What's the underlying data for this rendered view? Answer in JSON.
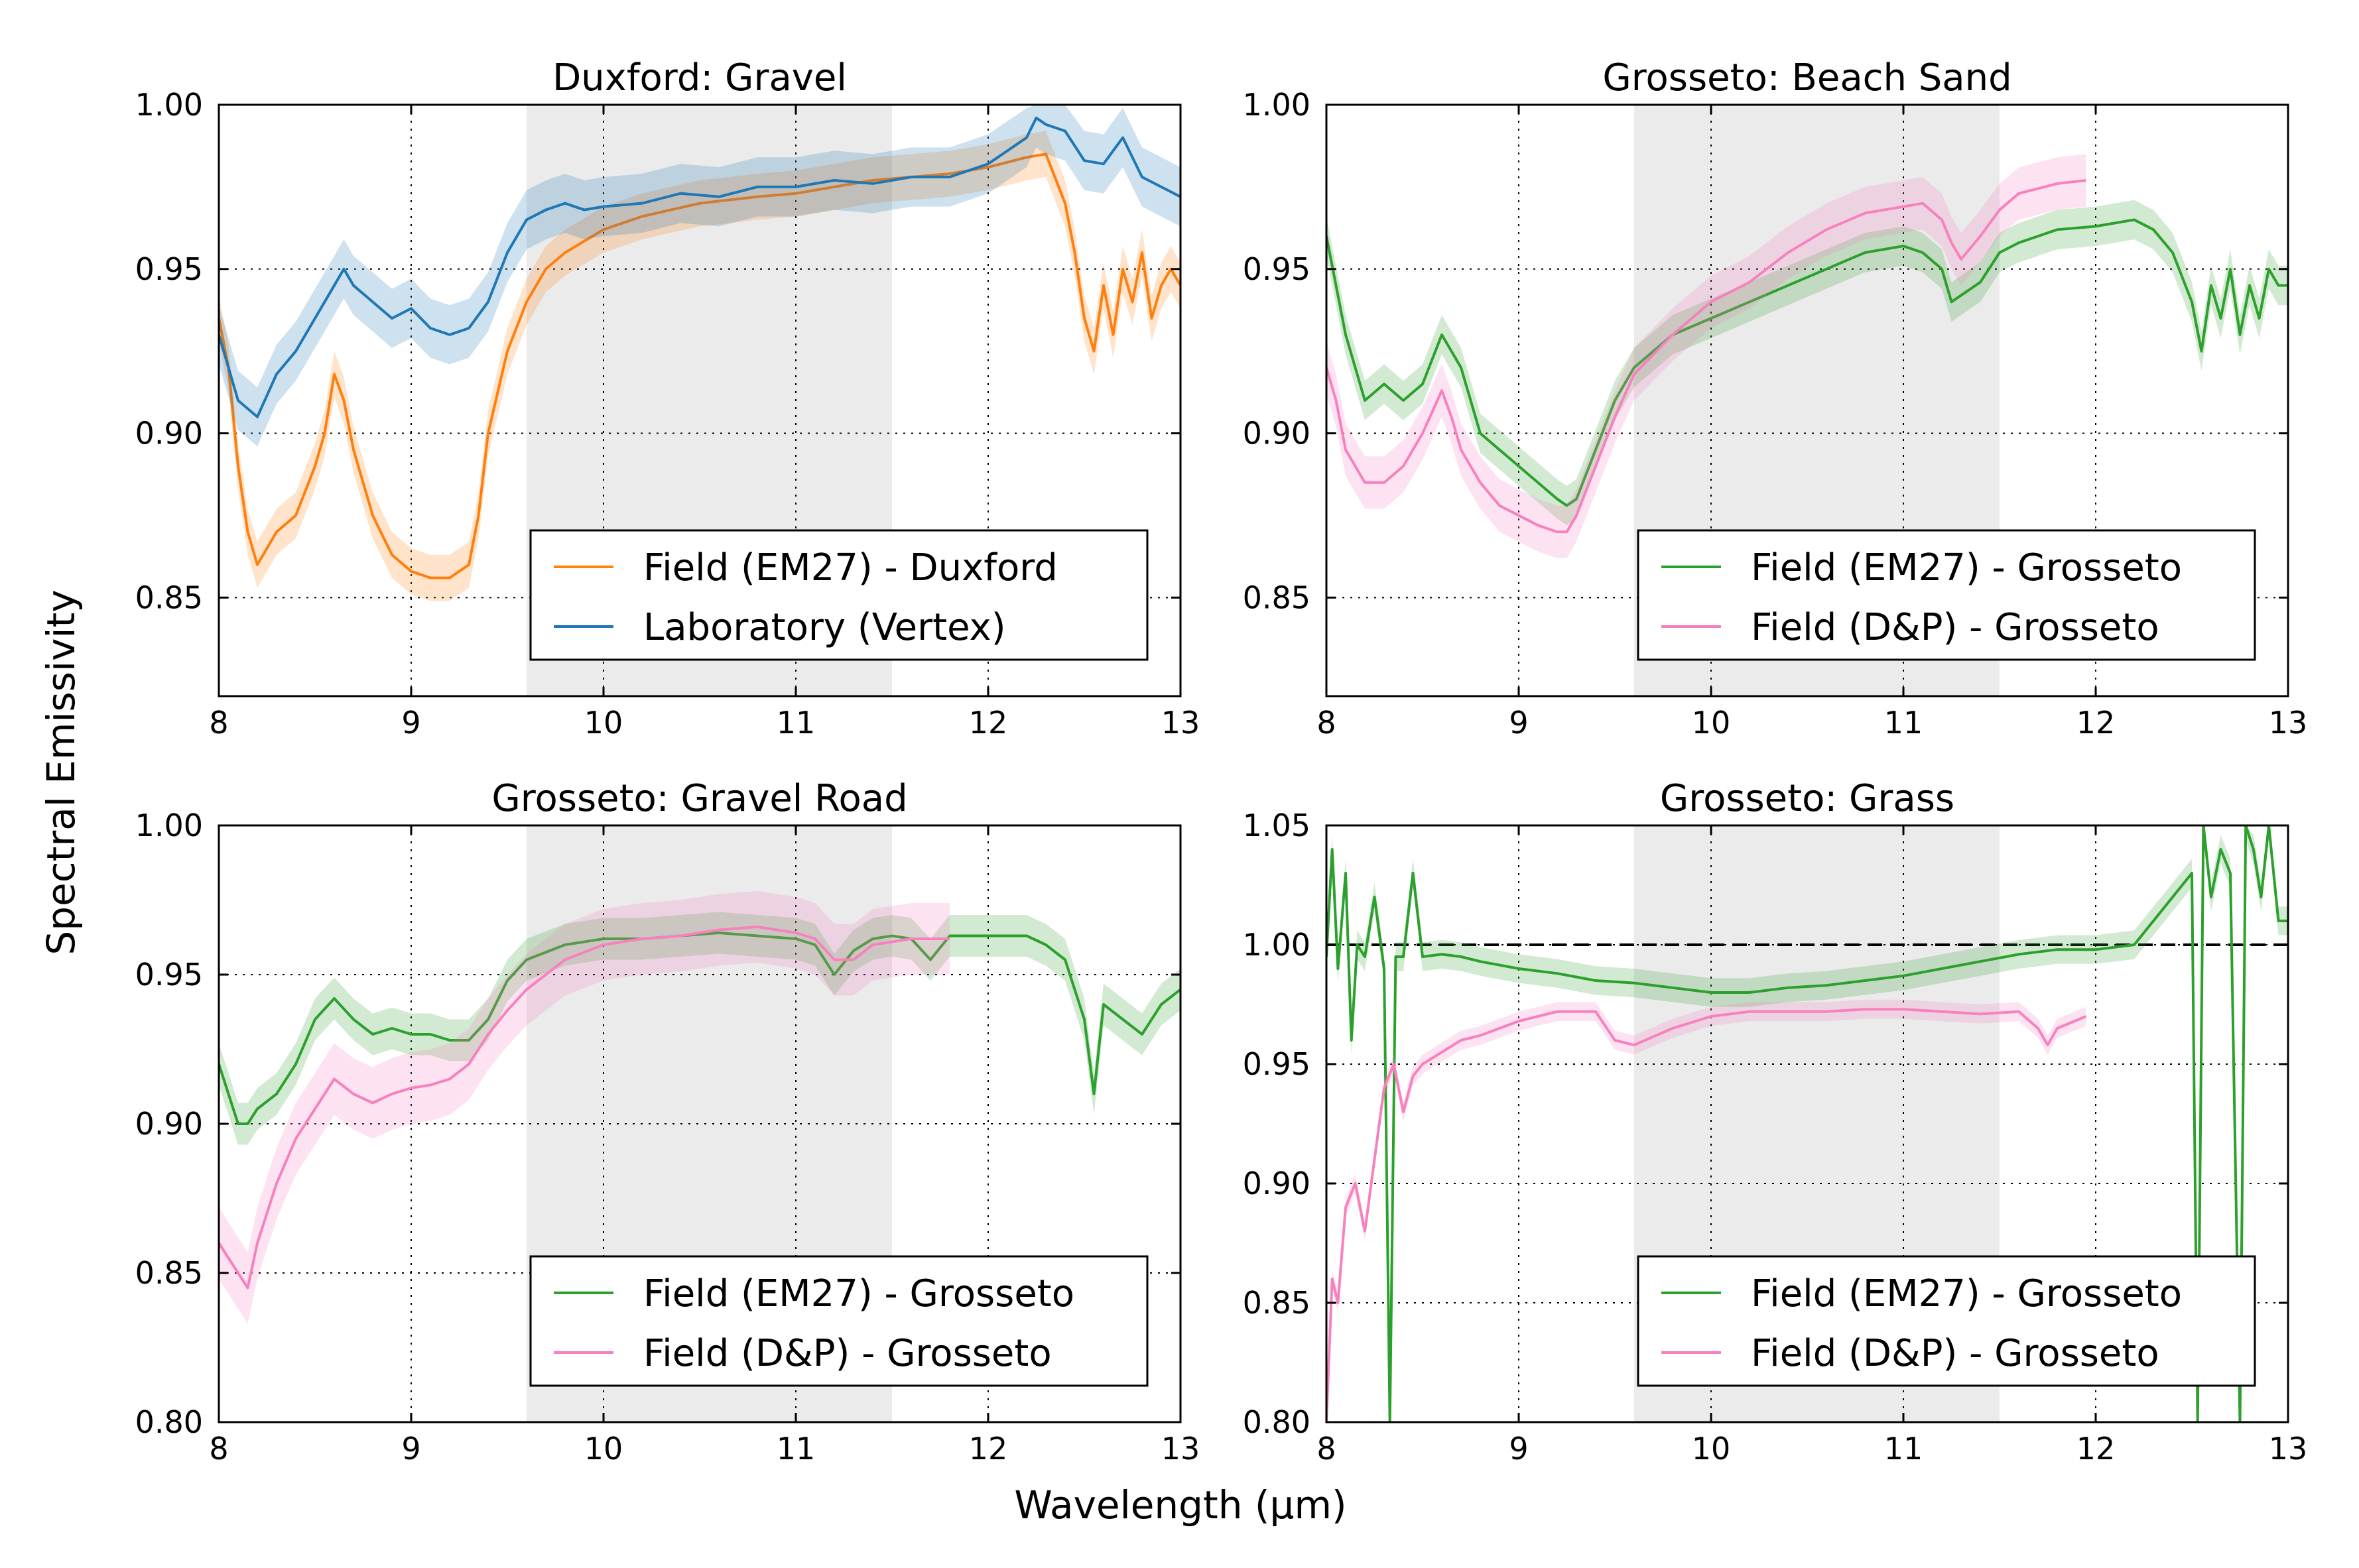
{
  "figure": {
    "ylabel": "Spectral Emissivity",
    "xlabel": "Wavelength (μm)"
  },
  "chart_data": [
    {
      "type": "line",
      "title": "Duxford: Gravel",
      "xlim": [
        8,
        13
      ],
      "ylim": [
        0.82,
        1.0
      ],
      "xticks": [
        8,
        9,
        10,
        11,
        12,
        13
      ],
      "yticks": [
        "0.85",
        "0.90",
        "0.95",
        "1.00"
      ],
      "yticks_values": [
        0.85,
        0.9,
        0.95,
        1.0
      ],
      "shaded_band": [
        9.6,
        11.5
      ],
      "grid": true,
      "legend_placement": "lower-right",
      "series": [
        {
          "name": "Field (EM27) - Duxford",
          "color": "#ff7f0e",
          "band": 0.007,
          "x": [
            8.0,
            8.05,
            8.1,
            8.15,
            8.2,
            8.3,
            8.4,
            8.5,
            8.55,
            8.6,
            8.65,
            8.7,
            8.8,
            8.9,
            9.0,
            9.1,
            9.2,
            9.3,
            9.35,
            9.4,
            9.5,
            9.6,
            9.7,
            9.8,
            10.0,
            10.2,
            10.5,
            10.8,
            11.0,
            11.2,
            11.4,
            11.6,
            11.8,
            12.0,
            12.2,
            12.3,
            12.4,
            12.45,
            12.5,
            12.55,
            12.6,
            12.65,
            12.7,
            12.75,
            12.8,
            12.85,
            12.9,
            12.95,
            13.0
          ],
          "y": [
            0.935,
            0.92,
            0.89,
            0.87,
            0.86,
            0.87,
            0.875,
            0.89,
            0.9,
            0.918,
            0.91,
            0.895,
            0.875,
            0.863,
            0.858,
            0.856,
            0.856,
            0.86,
            0.875,
            0.9,
            0.925,
            0.94,
            0.95,
            0.955,
            0.962,
            0.966,
            0.97,
            0.972,
            0.973,
            0.975,
            0.977,
            0.978,
            0.979,
            0.981,
            0.984,
            0.985,
            0.97,
            0.955,
            0.935,
            0.925,
            0.945,
            0.93,
            0.95,
            0.94,
            0.955,
            0.935,
            0.945,
            0.95,
            0.945
          ]
        },
        {
          "name": "Laboratory (Vertex)",
          "color": "#1f77b4",
          "band": 0.009,
          "x": [
            8.0,
            8.1,
            8.2,
            8.3,
            8.4,
            8.5,
            8.6,
            8.65,
            8.7,
            8.8,
            8.9,
            9.0,
            9.1,
            9.2,
            9.3,
            9.4,
            9.5,
            9.6,
            9.7,
            9.8,
            9.9,
            10.0,
            10.2,
            10.4,
            10.6,
            10.8,
            11.0,
            11.2,
            11.4,
            11.6,
            11.8,
            12.0,
            12.2,
            12.25,
            12.3,
            12.4,
            12.5,
            12.6,
            12.7,
            12.8,
            12.9,
            13.0
          ],
          "y": [
            0.93,
            0.91,
            0.905,
            0.918,
            0.925,
            0.935,
            0.945,
            0.95,
            0.945,
            0.94,
            0.935,
            0.938,
            0.932,
            0.93,
            0.932,
            0.94,
            0.955,
            0.965,
            0.968,
            0.97,
            0.968,
            0.969,
            0.97,
            0.973,
            0.972,
            0.975,
            0.975,
            0.977,
            0.976,
            0.978,
            0.978,
            0.982,
            0.99,
            0.996,
            0.994,
            0.992,
            0.983,
            0.982,
            0.99,
            0.978,
            0.975,
            0.972
          ]
        }
      ]
    },
    {
      "type": "line",
      "title": "Grosseto: Beach Sand",
      "xlim": [
        8,
        13
      ],
      "ylim": [
        0.82,
        1.0
      ],
      "xticks": [
        8,
        9,
        10,
        11,
        12,
        13
      ],
      "yticks": [
        "0.85",
        "0.90",
        "0.95",
        "1.00"
      ],
      "yticks_values": [
        0.85,
        0.9,
        0.95,
        1.0
      ],
      "shaded_band": [
        9.6,
        11.5
      ],
      "grid": true,
      "legend_placement": "lower-right",
      "series": [
        {
          "name": "Field (EM27) - Grosseto",
          "color": "#2ca02c",
          "band": 0.006,
          "x": [
            8.0,
            8.1,
            8.2,
            8.3,
            8.4,
            8.5,
            8.6,
            8.65,
            8.7,
            8.8,
            8.9,
            9.0,
            9.1,
            9.2,
            9.25,
            9.3,
            9.4,
            9.5,
            9.6,
            9.8,
            10.0,
            10.2,
            10.4,
            10.6,
            10.8,
            11.0,
            11.1,
            11.2,
            11.25,
            11.3,
            11.4,
            11.5,
            11.6,
            11.7,
            11.8,
            12.0,
            12.2,
            12.3,
            12.4,
            12.5,
            12.55,
            12.6,
            12.65,
            12.7,
            12.75,
            12.8,
            12.85,
            12.9,
            12.95,
            13.0
          ],
          "y": [
            0.96,
            0.93,
            0.91,
            0.915,
            0.91,
            0.915,
            0.93,
            0.925,
            0.92,
            0.9,
            0.895,
            0.89,
            0.885,
            0.88,
            0.878,
            0.88,
            0.895,
            0.91,
            0.92,
            0.93,
            0.935,
            0.94,
            0.945,
            0.95,
            0.955,
            0.957,
            0.955,
            0.95,
            0.94,
            0.942,
            0.946,
            0.955,
            0.958,
            0.96,
            0.962,
            0.963,
            0.965,
            0.962,
            0.955,
            0.94,
            0.925,
            0.945,
            0.935,
            0.95,
            0.93,
            0.945,
            0.935,
            0.95,
            0.945,
            0.945
          ]
        },
        {
          "name": "Field (D&P) - Grosseto",
          "color": "#f781bf",
          "band": 0.008,
          "x": [
            8.0,
            8.05,
            8.1,
            8.2,
            8.3,
            8.4,
            8.5,
            8.6,
            8.65,
            8.7,
            8.8,
            8.9,
            9.0,
            9.1,
            9.2,
            9.25,
            9.3,
            9.4,
            9.5,
            9.6,
            9.8,
            10.0,
            10.2,
            10.4,
            10.6,
            10.8,
            11.0,
            11.1,
            11.2,
            11.25,
            11.3,
            11.4,
            11.5,
            11.6,
            11.8,
            11.95
          ],
          "y": [
            0.92,
            0.91,
            0.895,
            0.885,
            0.885,
            0.89,
            0.9,
            0.913,
            0.905,
            0.895,
            0.885,
            0.878,
            0.875,
            0.872,
            0.87,
            0.87,
            0.875,
            0.89,
            0.905,
            0.918,
            0.93,
            0.94,
            0.946,
            0.955,
            0.962,
            0.967,
            0.969,
            0.97,
            0.965,
            0.958,
            0.953,
            0.96,
            0.968,
            0.973,
            0.976,
            0.977
          ]
        }
      ]
    },
    {
      "type": "line",
      "title": "Grosseto: Gravel Road",
      "xlim": [
        8,
        13
      ],
      "ylim": [
        0.8,
        1.0
      ],
      "xticks": [
        8,
        9,
        10,
        11,
        12,
        13
      ],
      "yticks": [
        "0.80",
        "0.85",
        "0.90",
        "0.95",
        "1.00"
      ],
      "yticks_values": [
        0.8,
        0.85,
        0.9,
        0.95,
        1.0
      ],
      "shaded_band": [
        9.6,
        11.5
      ],
      "grid": true,
      "legend_placement": "lower-right",
      "series": [
        {
          "name": "Field (EM27) - Grosseto",
          "color": "#2ca02c",
          "band": 0.007,
          "x": [
            8.0,
            8.05,
            8.1,
            8.15,
            8.2,
            8.3,
            8.4,
            8.5,
            8.6,
            8.7,
            8.8,
            8.9,
            9.0,
            9.1,
            9.2,
            9.3,
            9.4,
            9.5,
            9.6,
            9.8,
            10.0,
            10.2,
            10.4,
            10.6,
            10.8,
            11.0,
            11.1,
            11.2,
            11.3,
            11.4,
            11.5,
            11.6,
            11.7,
            11.8,
            12.0,
            12.2,
            12.3,
            12.4,
            12.5,
            12.55,
            12.6,
            12.7,
            12.8,
            12.9,
            13.0
          ],
          "y": [
            0.92,
            0.91,
            0.9,
            0.9,
            0.905,
            0.91,
            0.92,
            0.935,
            0.942,
            0.935,
            0.93,
            0.932,
            0.93,
            0.93,
            0.928,
            0.928,
            0.935,
            0.948,
            0.955,
            0.96,
            0.962,
            0.962,
            0.963,
            0.964,
            0.963,
            0.962,
            0.96,
            0.95,
            0.958,
            0.962,
            0.963,
            0.962,
            0.955,
            0.963,
            0.963,
            0.963,
            0.96,
            0.955,
            0.935,
            0.91,
            0.94,
            0.935,
            0.93,
            0.94,
            0.945
          ]
        },
        {
          "name": "Field (D&P) - Grosseto",
          "color": "#f781bf",
          "band": 0.012,
          "x": [
            8.0,
            8.05,
            8.1,
            8.15,
            8.2,
            8.3,
            8.4,
            8.5,
            8.6,
            8.7,
            8.8,
            8.9,
            9.0,
            9.1,
            9.2,
            9.3,
            9.4,
            9.5,
            9.6,
            9.8,
            10.0,
            10.2,
            10.4,
            10.6,
            10.8,
            11.0,
            11.1,
            11.2,
            11.3,
            11.4,
            11.6,
            11.8
          ],
          "y": [
            0.86,
            0.855,
            0.85,
            0.845,
            0.86,
            0.88,
            0.895,
            0.905,
            0.915,
            0.91,
            0.907,
            0.91,
            0.912,
            0.913,
            0.915,
            0.92,
            0.93,
            0.938,
            0.945,
            0.955,
            0.96,
            0.962,
            0.963,
            0.965,
            0.966,
            0.964,
            0.962,
            0.955,
            0.955,
            0.96,
            0.962,
            0.962
          ]
        }
      ]
    },
    {
      "type": "line",
      "title": "Grosseto: Grass",
      "xlim": [
        8,
        13
      ],
      "ylim": [
        0.8,
        1.05
      ],
      "xticks": [
        8,
        9,
        10,
        11,
        12,
        13
      ],
      "yticks": [
        "0.80",
        "0.85",
        "0.90",
        "0.95",
        "1.00",
        "1.05"
      ],
      "yticks_values": [
        0.8,
        0.85,
        0.9,
        0.95,
        1.0,
        1.05
      ],
      "shaded_band": [
        9.6,
        11.5
      ],
      "reference_line": 1.0,
      "grid": true,
      "legend_placement": "lower-right",
      "series": [
        {
          "name": "Field (EM27) - Grosseto",
          "color": "#2ca02c",
          "band": 0.006,
          "x": [
            8.0,
            8.03,
            8.06,
            8.1,
            8.13,
            8.16,
            8.2,
            8.25,
            8.3,
            8.33,
            8.36,
            8.4,
            8.45,
            8.5,
            8.6,
            8.7,
            8.8,
            9.0,
            9.2,
            9.4,
            9.6,
            9.8,
            10.0,
            10.2,
            10.4,
            10.6,
            10.8,
            11.0,
            11.2,
            11.4,
            11.6,
            11.8,
            12.0,
            12.2,
            12.3,
            12.4,
            12.5,
            12.53,
            12.56,
            12.6,
            12.65,
            12.7,
            12.75,
            12.78,
            12.82,
            12.86,
            12.9,
            12.95,
            13.0
          ],
          "y": [
            0.995,
            1.04,
            0.99,
            1.03,
            0.96,
            1.0,
            0.995,
            1.02,
            0.99,
            0.8,
            0.995,
            0.995,
            1.03,
            0.995,
            0.996,
            0.995,
            0.993,
            0.99,
            0.988,
            0.985,
            0.984,
            0.982,
            0.98,
            0.98,
            0.982,
            0.983,
            0.985,
            0.987,
            0.99,
            0.993,
            0.996,
            0.998,
            0.998,
            1.0,
            1.01,
            1.02,
            1.03,
            0.8,
            1.05,
            1.02,
            1.04,
            1.03,
            0.8,
            1.05,
            1.04,
            1.02,
            1.05,
            1.01,
            1.01
          ]
        },
        {
          "name": "Field (D&P) - Grosseto",
          "color": "#f781bf",
          "band": 0.004,
          "x": [
            8.0,
            8.03,
            8.06,
            8.1,
            8.15,
            8.2,
            8.25,
            8.3,
            8.35,
            8.4,
            8.45,
            8.5,
            8.6,
            8.7,
            8.8,
            8.9,
            9.0,
            9.2,
            9.4,
            9.5,
            9.6,
            9.8,
            10.0,
            10.2,
            10.4,
            10.6,
            10.8,
            11.0,
            11.2,
            11.4,
            11.6,
            11.7,
            11.75,
            11.8,
            11.95
          ],
          "y": [
            0.8,
            0.86,
            0.85,
            0.89,
            0.9,
            0.88,
            0.91,
            0.94,
            0.95,
            0.93,
            0.945,
            0.95,
            0.955,
            0.96,
            0.962,
            0.965,
            0.968,
            0.972,
            0.972,
            0.96,
            0.958,
            0.965,
            0.97,
            0.972,
            0.972,
            0.972,
            0.973,
            0.973,
            0.972,
            0.971,
            0.972,
            0.965,
            0.958,
            0.965,
            0.97
          ]
        }
      ]
    }
  ]
}
